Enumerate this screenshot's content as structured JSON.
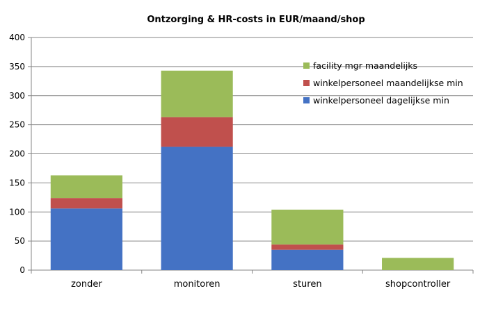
{
  "chart_data": {
    "type": "bar",
    "stacked": true,
    "title": "Ontzorging & HR-costs in EUR/maand/shop",
    "xlabel": "",
    "ylabel": "",
    "categories": [
      "zonder",
      "monitoren",
      "sturen",
      "shopcontroller"
    ],
    "ylim": [
      0,
      400
    ],
    "yticks": [
      0,
      50,
      100,
      150,
      200,
      250,
      300,
      350,
      400
    ],
    "grid": true,
    "legend_position": "top-right",
    "series": [
      {
        "name": "winkelpersoneel dagelijkse min",
        "color": "#4472C4",
        "values": [
          106,
          212,
          35,
          0
        ]
      },
      {
        "name": "winkelpersoneel maandelijkse min",
        "color": "#C0504D",
        "values": [
          18,
          51,
          9,
          0
        ]
      },
      {
        "name": "facility mgr maandelijks",
        "color": "#9BBB59",
        "values": [
          39,
          80,
          60,
          21
        ]
      }
    ],
    "legend_order": [
      2,
      1,
      0
    ]
  }
}
